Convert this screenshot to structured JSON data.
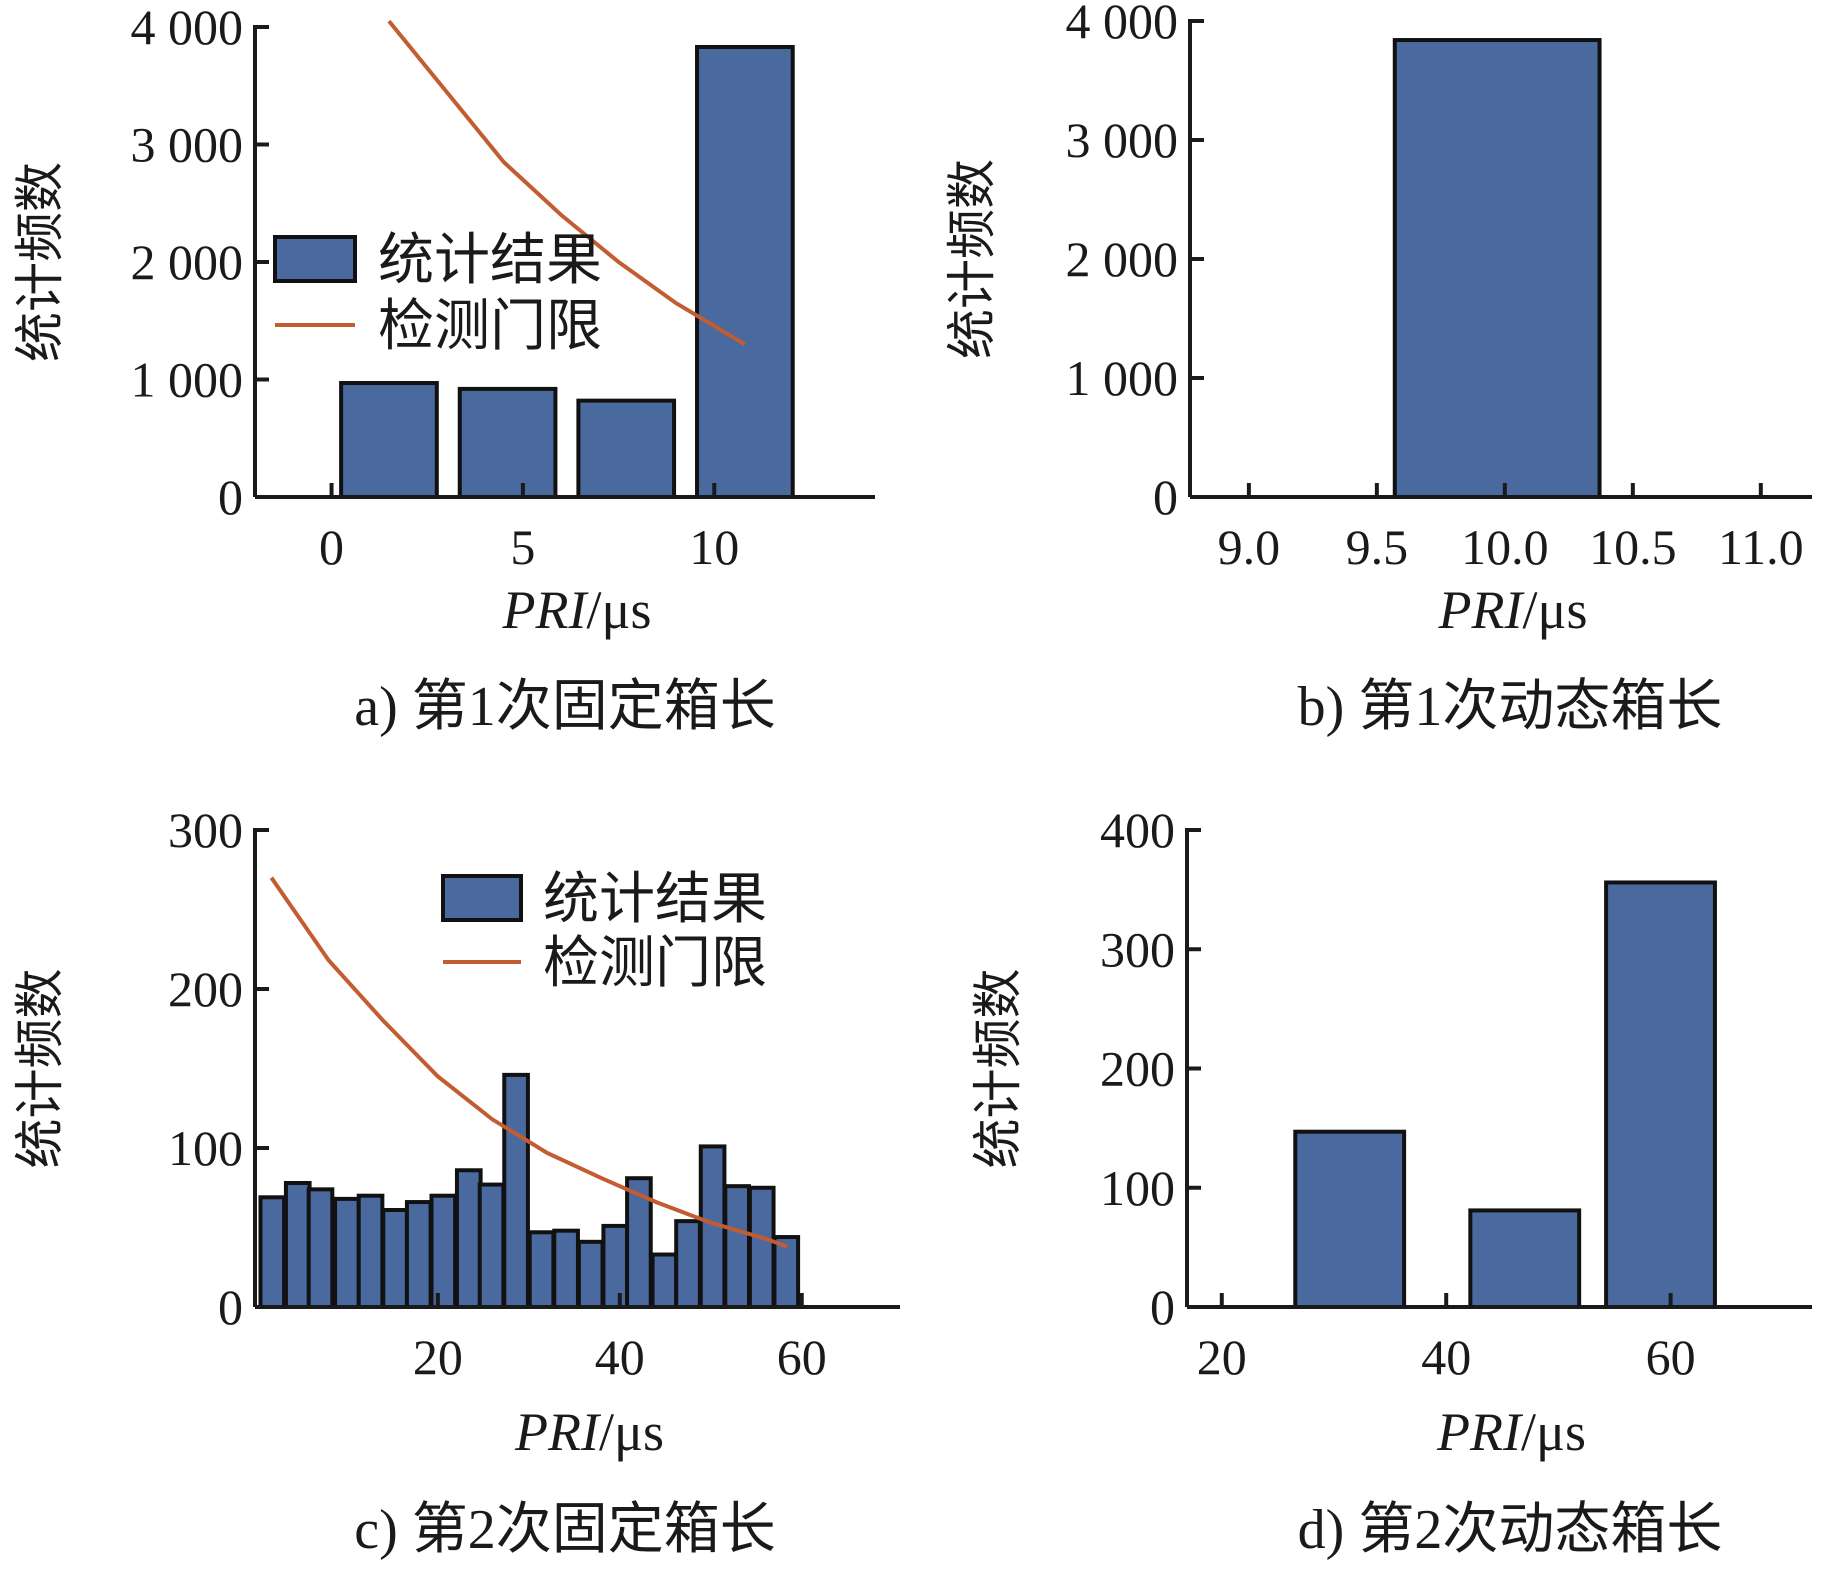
{
  "figure": {
    "colors": {
      "bar": "#4a699f",
      "threshold": "#c45c31"
    }
  },
  "chart_data": [
    {
      "type": "bar",
      "caption": "a) 第1次固定箱长",
      "xlabel_italic": "PRI",
      "xlabel_unit": "/μs",
      "ylabel": "统计频数",
      "xlim": [
        -2.0,
        14.2
      ],
      "ylim": [
        0,
        4000
      ],
      "xticks": [
        0,
        5,
        10
      ],
      "xtick_labels": [
        "0",
        "5",
        "10"
      ],
      "yticks": [
        0,
        1000,
        2000,
        3000,
        4000
      ],
      "ytick_labels": [
        "0",
        "1 000",
        "2 000",
        "3 000",
        "4 000"
      ],
      "bin_width": 2.5,
      "bars": [
        {
          "x": 1.5,
          "value": 970
        },
        {
          "x": 4.6,
          "value": 920
        },
        {
          "x": 7.7,
          "value": 820
        },
        {
          "x": 10.8,
          "value": 3830
        }
      ],
      "legend": {
        "position": "upper-left",
        "bar_label": "统计结果",
        "line_label": "检测门限"
      },
      "threshold": {
        "x": [
          1.5,
          3.0,
          4.5,
          6.0,
          7.5,
          9.0,
          10.8
        ],
        "y": [
          4050,
          3450,
          2850,
          2400,
          2000,
          1650,
          1300
        ]
      }
    },
    {
      "type": "bar",
      "caption": "b) 第1次动态箱长",
      "xlabel_italic": "PRI",
      "xlabel_unit": "/μs",
      "ylabel": "统计频数",
      "xlim": [
        8.77,
        11.2
      ],
      "ylim": [
        0,
        4000
      ],
      "xticks": [
        9.0,
        9.5,
        10.0,
        10.5,
        11.0
      ],
      "xtick_labels": [
        "9.0",
        "9.5",
        "10.0",
        "10.5",
        "11.0"
      ],
      "yticks": [
        0,
        1000,
        2000,
        3000,
        4000
      ],
      "ytick_labels": [
        "0",
        "1 000",
        "2 000",
        "3 000",
        "4 000"
      ],
      "bin_width": 0.8,
      "bars": [
        {
          "x": 9.97,
          "value": 3840
        }
      ]
    },
    {
      "type": "bar",
      "caption": "c) 第2次固定箱长",
      "xlabel_italic": "PRI",
      "xlabel_unit": "/μs",
      "ylabel": "统计频数",
      "xlim": [
        -0.1,
        70.8
      ],
      "ylim": [
        0,
        300
      ],
      "xticks": [
        20,
        40,
        60
      ],
      "xtick_labels": [
        "20",
        "40",
        "60"
      ],
      "yticks": [
        0,
        100,
        200,
        300
      ],
      "ytick_labels": [
        "0",
        "100",
        "200",
        "300"
      ],
      "bin_width": 2.6,
      "bars": [
        {
          "x": 1.8,
          "value": 69
        },
        {
          "x": 4.6,
          "value": 78
        },
        {
          "x": 7.1,
          "value": 74
        },
        {
          "x": 10.0,
          "value": 68
        },
        {
          "x": 12.6,
          "value": 70
        },
        {
          "x": 15.3,
          "value": 61
        },
        {
          "x": 17.9,
          "value": 66
        },
        {
          "x": 20.6,
          "value": 70
        },
        {
          "x": 23.4,
          "value": 86
        },
        {
          "x": 25.9,
          "value": 77
        },
        {
          "x": 28.6,
          "value": 146
        },
        {
          "x": 31.4,
          "value": 47
        },
        {
          "x": 34.1,
          "value": 48
        },
        {
          "x": 36.8,
          "value": 41
        },
        {
          "x": 39.5,
          "value": 51
        },
        {
          "x": 42.1,
          "value": 81
        },
        {
          "x": 44.9,
          "value": 33
        },
        {
          "x": 47.5,
          "value": 54
        },
        {
          "x": 50.2,
          "value": 101
        },
        {
          "x": 52.9,
          "value": 76
        },
        {
          "x": 55.6,
          "value": 75
        },
        {
          "x": 58.3,
          "value": 44
        }
      ],
      "legend": {
        "position": "top-right",
        "bar_label": "统计结果",
        "line_label": "检测门限"
      },
      "threshold": {
        "x": [
          1.7,
          8,
          14,
          20,
          26,
          32,
          38,
          44,
          50,
          56,
          58.4
        ],
        "y": [
          270,
          218,
          180,
          145,
          118,
          97,
          81,
          66,
          53,
          43,
          38
        ]
      }
    },
    {
      "type": "bar",
      "caption": "d) 第2次动态箱长",
      "xlabel_italic": "PRI",
      "xlabel_unit": "/μs",
      "ylabel": "统计频数",
      "xlim": [
        16.9,
        72.6
      ],
      "ylim": [
        0,
        400
      ],
      "xticks": [
        20,
        40,
        60
      ],
      "xtick_labels": [
        "20",
        "40",
        "60"
      ],
      "yticks": [
        0,
        100,
        200,
        300,
        400
      ],
      "ytick_labels": [
        "0",
        "100",
        "200",
        "300",
        "400"
      ],
      "bin_width": 9.7,
      "bars": [
        {
          "x": 31.4,
          "value": 147
        },
        {
          "x": 47.0,
          "value": 81
        },
        {
          "x": 59.1,
          "value": 356
        }
      ]
    }
  ]
}
